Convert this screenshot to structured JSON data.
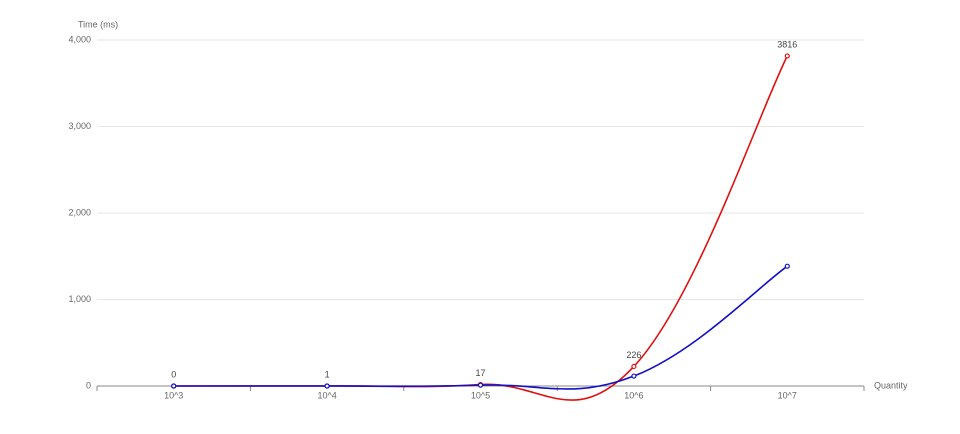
{
  "chart_data": {
    "type": "line",
    "y_axis_name": "Time (ms)",
    "x_axis_name": "Quantity",
    "categories": [
      "10^3",
      "10^4",
      "10^5",
      "10^6",
      "10^7"
    ],
    "series": [
      {
        "color": "#e01010",
        "values": [
          0,
          1,
          17,
          226,
          3816
        ],
        "show_labels": true
      },
      {
        "color": "#1010c8",
        "values": [
          0,
          0,
          10,
          115,
          1385
        ],
        "show_labels": false
      }
    ],
    "ylim": [
      0,
      4000
    ],
    "yticks": [
      0,
      {
        "value": 1000,
        "label": "1,000"
      },
      {
        "value": 2000,
        "label": "2,000"
      },
      {
        "value": 3000,
        "label": "3,000"
      },
      {
        "value": 4000,
        "label": "4,000"
      }
    ],
    "grid": true,
    "smooth": true
  }
}
